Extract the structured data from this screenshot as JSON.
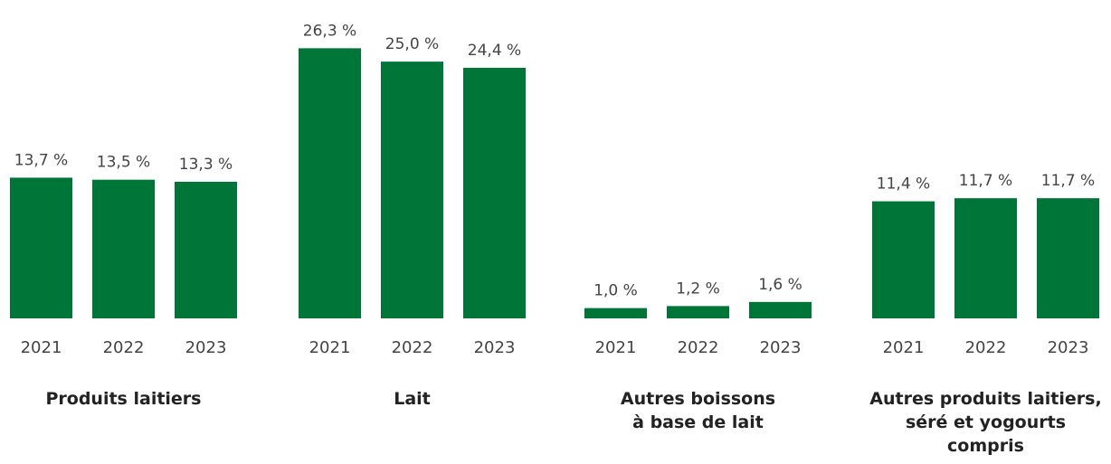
{
  "chart_data": {
    "type": "bar",
    "color": "#007538",
    "ylim": [
      0,
      31
    ],
    "groups": [
      {
        "label": [
          "Produits laitiers"
        ],
        "categories": [
          "2021",
          "2022",
          "2023"
        ],
        "values": [
          13.7,
          13.5,
          13.3
        ],
        "value_labels": [
          "13,7 %",
          "13,5 %",
          "13,3 %"
        ]
      },
      {
        "label": [
          "Lait"
        ],
        "categories": [
          "2021",
          "2022",
          "2023"
        ],
        "values": [
          26.3,
          25.0,
          24.4
        ],
        "value_labels": [
          "26,3 %",
          "25,0 %",
          "24,4 %"
        ]
      },
      {
        "label": [
          "Autres boissons",
          "à base de lait"
        ],
        "categories": [
          "2021",
          "2022",
          "2023"
        ],
        "values": [
          1.0,
          1.2,
          1.6
        ],
        "value_labels": [
          "1,0 %",
          "1,2 %",
          "1,6 %"
        ]
      },
      {
        "label": [
          "Autres produits laitiers,",
          "séré et yogourts",
          "compris"
        ],
        "categories": [
          "2021",
          "2022",
          "2023"
        ],
        "values": [
          11.4,
          11.7,
          11.7
        ],
        "value_labels": [
          "11,4 %",
          "11,7 %",
          "11,7 %"
        ]
      }
    ]
  }
}
